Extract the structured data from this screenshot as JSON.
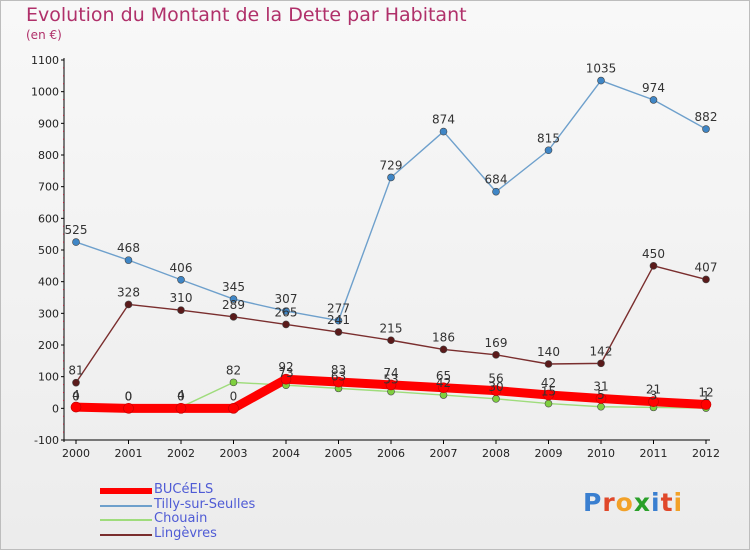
{
  "title": "Evolution du Montant de la Dette par Habitant",
  "subtitle": "(en €)",
  "brand": {
    "text": "Proxiti",
    "letter_colors": [
      "#3a7fd0",
      "#e0482a",
      "#f2a128",
      "#2aa02a",
      "#3a7fd0",
      "#e0482a",
      "#f2a128"
    ]
  },
  "chart_data": {
    "type": "line",
    "x": [
      "2000",
      "2001",
      "2002",
      "2003",
      "2004",
      "2005",
      "2006",
      "2007",
      "2008",
      "2009",
      "2010",
      "2011",
      "2012"
    ],
    "ylim": [
      -100,
      1100
    ],
    "yticks": [
      -100,
      0,
      100,
      200,
      300,
      400,
      500,
      600,
      700,
      800,
      900,
      1000,
      1100
    ],
    "grid": false,
    "legend_position": "bottom-left",
    "series": [
      {
        "name": "BUCéELS",
        "color": "#ff0000",
        "values": [
          4,
          0,
          0,
          0,
          92,
          83,
          74,
          65,
          56,
          42,
          31,
          21,
          12
        ],
        "labels": [
          "4",
          "0",
          "0",
          "0",
          "92",
          "83",
          "74",
          "65",
          "56",
          "42",
          "31",
          "21",
          "12"
        ]
      },
      {
        "name": "Tilly-sur-Seulles",
        "color": "#6ea0cc",
        "values": [
          525,
          468,
          406,
          345,
          307,
          277,
          729,
          874,
          684,
          815,
          1035,
          974,
          882
        ],
        "labels": [
          "525",
          "468",
          "406",
          "345",
          "307",
          "277",
          "729",
          "874",
          "684",
          "815",
          "1035",
          "974",
          "882"
        ]
      },
      {
        "name": "Chouain",
        "color": "#9fdc7c",
        "values": [
          0,
          0,
          4,
          82,
          73,
          63,
          53,
          42,
          30,
          15,
          5,
          3,
          1
        ],
        "labels": [
          "0",
          "0",
          "4",
          "82",
          "73",
          "63",
          "53",
          "42",
          "30",
          "15",
          "5",
          "3",
          "1"
        ]
      },
      {
        "name": "Lingèvres",
        "color": "#7a2e2e",
        "values": [
          81,
          328,
          310,
          289,
          265,
          241,
          215,
          186,
          169,
          140,
          142,
          450,
          407
        ],
        "labels": [
          "81",
          "328",
          "310",
          "289",
          "265",
          "241",
          "215",
          "186",
          "169",
          "140",
          "142",
          "450",
          "407"
        ]
      }
    ]
  }
}
